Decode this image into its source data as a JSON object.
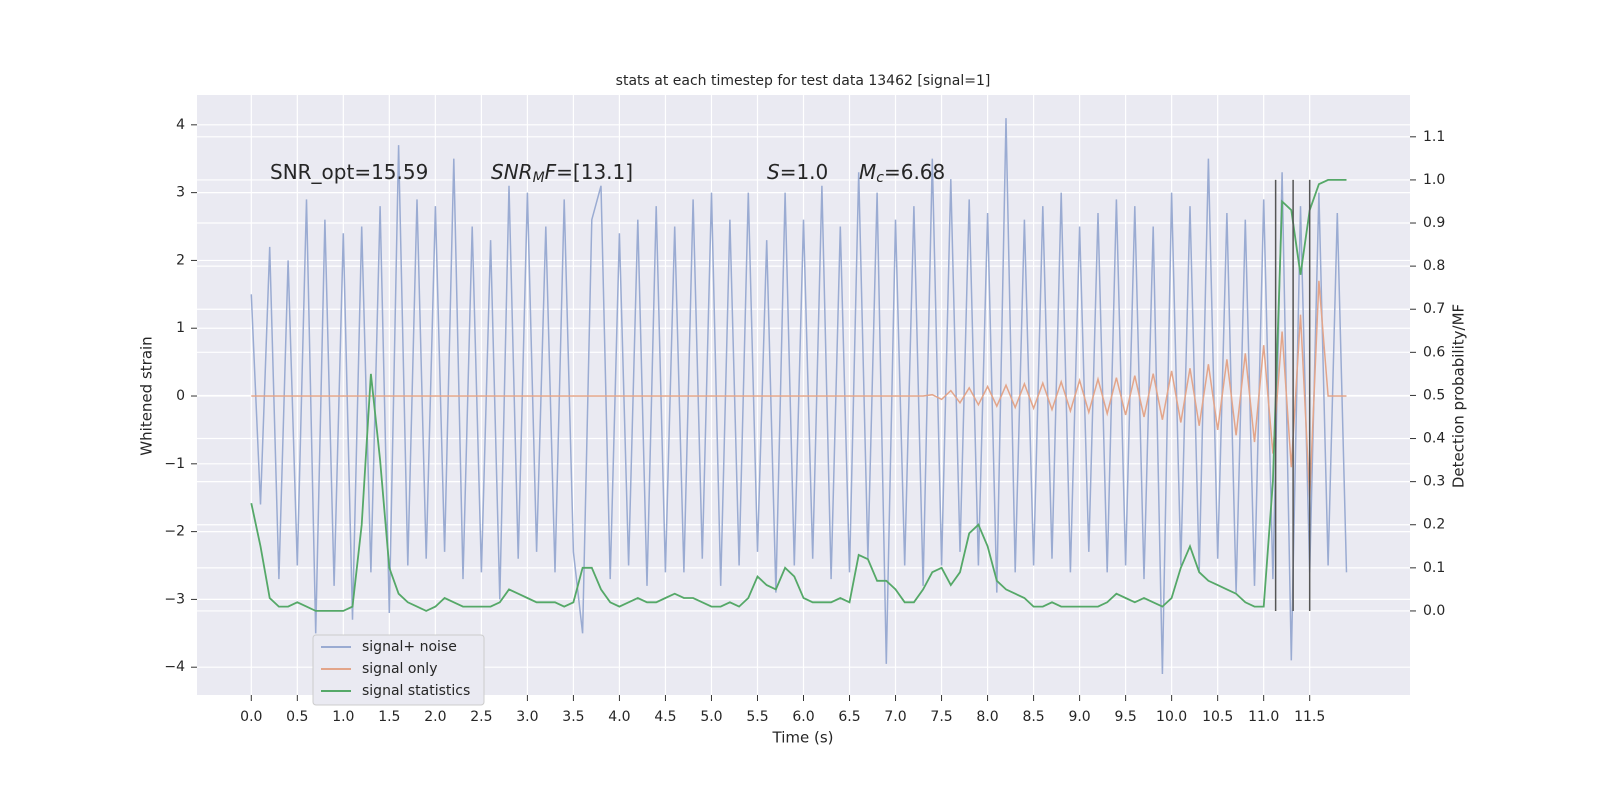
{
  "chart_data": {
    "type": "line",
    "title": "stats at each timestep for test data 13462 [signal=1]",
    "xlabel": "Time (s)",
    "ylabel": "Whitened strain",
    "y2label": "Detection probability/MF",
    "annotations": [
      "SNR_opt=15.59",
      "SNRMF=[13.1]",
      "S=1.0",
      "Mc=6.68"
    ],
    "x": [
      0,
      0.1,
      0.2,
      0.3,
      0.4,
      0.5,
      0.6,
      0.7,
      0.8,
      0.9,
      1,
      1.1,
      1.2,
      1.3,
      1.4,
      1.5,
      1.6,
      1.7,
      1.8,
      1.9,
      2,
      2.1,
      2.2,
      2.3,
      2.4,
      2.5,
      2.6,
      2.7,
      2.8,
      2.9,
      3,
      3.1,
      3.2,
      3.3,
      3.4,
      3.5,
      3.6,
      3.7,
      3.8,
      3.9,
      4,
      4.1,
      4.2,
      4.3,
      4.4,
      4.5,
      4.6,
      4.7,
      4.8,
      4.9,
      5,
      5.1,
      5.2,
      5.3,
      5.4,
      5.5,
      5.6,
      5.7,
      5.8,
      5.9,
      6,
      6.1,
      6.2,
      6.3,
      6.4,
      6.5,
      6.6,
      6.7,
      6.8,
      6.9,
      7,
      7.1,
      7.2,
      7.3,
      7.4,
      7.5,
      7.6,
      7.7,
      7.8,
      7.9,
      8,
      8.1,
      8.2,
      8.3,
      8.4,
      8.5,
      8.6,
      8.7,
      8.8,
      8.9,
      9,
      9.1,
      9.2,
      9.3,
      9.4,
      9.5,
      9.6,
      9.7,
      9.8,
      9.9,
      10,
      10.1,
      10.2,
      10.3,
      10.4,
      10.5,
      10.6,
      10.7,
      10.8,
      10.9,
      11,
      11.1,
      11.2,
      11.3,
      11.4,
      11.5,
      11.6,
      11.7,
      11.8,
      11.9
    ],
    "series": [
      {
        "name": "signal+ noise",
        "color": "#9aabd2",
        "values": [
          1.5,
          -1.6,
          2.2,
          -2.7,
          2.0,
          -2.5,
          2.9,
          -3.5,
          2.6,
          -2.8,
          2.4,
          -3.3,
          2.5,
          -2.6,
          2.8,
          -3.2,
          3.7,
          -2.5,
          2.9,
          -2.4,
          2.8,
          -2.3,
          3.5,
          -2.7,
          2.5,
          -2.6,
          2.3,
          -3.0,
          3.1,
          -2.4,
          3.0,
          -2.3,
          2.5,
          -2.6,
          2.9,
          -2.3,
          -3.5,
          2.6,
          3.1,
          -2.7,
          2.4,
          -2.5,
          2.6,
          -2.8,
          2.8,
          -2.6,
          2.5,
          -2.6,
          2.9,
          -2.4,
          3.0,
          -2.8,
          2.6,
          -2.5,
          3.0,
          -2.3,
          2.3,
          -2.9,
          3.0,
          -2.5,
          2.6,
          -2.4,
          3.1,
          -2.7,
          2.5,
          -2.6,
          3.3,
          -2.4,
          3.0,
          -3.95,
          2.6,
          -2.5,
          2.8,
          -2.8,
          3.5,
          -2.5,
          3.2,
          -2.3,
          2.9,
          -2.5,
          2.7,
          -2.9,
          4.1,
          -2.6,
          2.6,
          -2.5,
          2.8,
          -2.4,
          3.0,
          -2.6,
          2.5,
          -2.3,
          2.7,
          -2.6,
          2.9,
          -2.5,
          2.8,
          -2.7,
          2.5,
          -4.1,
          3.0,
          -2.5,
          2.8,
          -2.6,
          3.5,
          -2.4,
          2.7,
          -2.9,
          2.6,
          -2.8,
          2.9,
          -2.7,
          3.3,
          -3.9,
          2.8,
          -2.6,
          3.0,
          -2.5,
          2.7,
          -2.6
        ]
      },
      {
        "name": "signal only",
        "color": "#e3a58a",
        "values": [
          0,
          0,
          0,
          0,
          0,
          0,
          0,
          0,
          0,
          0,
          0,
          0,
          0,
          0,
          0,
          0,
          0,
          0,
          0,
          0,
          0,
          0,
          0,
          0,
          0,
          0,
          0,
          0,
          0,
          0,
          0,
          0,
          0,
          0,
          0,
          0,
          0,
          0,
          0,
          0,
          0,
          0,
          0,
          0,
          0,
          0,
          0,
          0,
          0,
          0,
          0,
          0,
          0,
          0,
          0,
          0,
          0,
          0,
          0,
          0,
          0,
          0,
          0,
          0,
          0,
          0,
          0,
          0,
          0,
          0,
          0,
          0,
          0,
          0,
          0.02,
          -0.05,
          0.08,
          -0.1,
          0.12,
          -0.13,
          0.14,
          -0.15,
          0.16,
          -0.17,
          0.18,
          -0.18,
          0.19,
          -0.2,
          0.21,
          -0.22,
          0.23,
          -0.24,
          0.25,
          -0.26,
          0.27,
          -0.28,
          0.3,
          -0.31,
          0.33,
          -0.35,
          0.37,
          -0.39,
          0.41,
          -0.44,
          0.47,
          -0.5,
          0.54,
          -0.58,
          0.63,
          -0.68,
          0.75,
          -0.85,
          0.95,
          -1.05,
          1.2,
          -1.5,
          1.7,
          0,
          0,
          0
        ]
      },
      {
        "name": "signal statistics",
        "color": "#55a868",
        "axis": "y2",
        "values": [
          0.25,
          0.15,
          0.03,
          0.01,
          0.01,
          0.02,
          0.01,
          0,
          0,
          0,
          0,
          0.01,
          0.2,
          0.55,
          0.35,
          0.1,
          0.04,
          0.02,
          0.01,
          0,
          0.01,
          0.03,
          0.02,
          0.01,
          0.01,
          0.01,
          0.01,
          0.02,
          0.05,
          0.04,
          0.03,
          0.02,
          0.02,
          0.02,
          0.01,
          0.02,
          0.1,
          0.1,
          0.05,
          0.02,
          0.01,
          0.02,
          0.03,
          0.02,
          0.02,
          0.03,
          0.04,
          0.03,
          0.03,
          0.02,
          0.01,
          0.01,
          0.02,
          0.01,
          0.03,
          0.08,
          0.06,
          0.05,
          0.1,
          0.08,
          0.03,
          0.02,
          0.02,
          0.02,
          0.03,
          0.02,
          0.13,
          0.12,
          0.07,
          0.07,
          0.05,
          0.02,
          0.02,
          0.05,
          0.09,
          0.1,
          0.06,
          0.09,
          0.18,
          0.2,
          0.15,
          0.07,
          0.05,
          0.04,
          0.03,
          0.01,
          0.01,
          0.02,
          0.01,
          0.01,
          0.01,
          0.01,
          0.01,
          0.02,
          0.04,
          0.03,
          0.02,
          0.03,
          0.02,
          0.01,
          0.03,
          0.1,
          0.15,
          0.09,
          0.07,
          0.06,
          0.05,
          0.04,
          0.02,
          0.01,
          0.01,
          0.3,
          0.95,
          0.93,
          0.78,
          0.93,
          0.99,
          1,
          1,
          1
        ]
      }
    ],
    "vlines": {
      "color": "#555555",
      "x": [
        11.13,
        11.32,
        11.5
      ],
      "ymin": 0,
      "ymax": 1
    },
    "xlim": [
      -0.59,
      12.59
    ],
    "ylim": [
      -4.41,
      4.44
    ],
    "y2lim": [
      -0.195,
      1.197
    ],
    "xticks": [
      {
        "value": 0,
        "label": "0.0"
      },
      0.5,
      {
        "value": 1,
        "label": "1.0"
      },
      1.5,
      {
        "value": 2,
        "label": "2.0"
      },
      2.5,
      {
        "value": 3,
        "label": "3.0"
      },
      3.5,
      {
        "value": 4,
        "label": "4.0"
      },
      4.5,
      {
        "value": 5,
        "label": "5.0"
      },
      5.5,
      {
        "value": 6,
        "label": "6.0"
      },
      6.5,
      {
        "value": 7,
        "label": "7.0"
      },
      7.5,
      {
        "value": 8,
        "label": "8.0"
      },
      8.5,
      {
        "value": 9,
        "label": "9.0"
      },
      9.5,
      {
        "value": 10,
        "label": "10.0"
      },
      10.5,
      {
        "value": 11,
        "label": "11.0"
      },
      11.5
    ],
    "yticks": [
      {
        "value": -4,
        "label": "−4"
      },
      {
        "value": -3,
        "label": "−3"
      },
      {
        "value": -2,
        "label": "−2"
      },
      {
        "value": -1,
        "label": "−1"
      },
      0,
      1,
      2,
      3,
      4
    ],
    "y2ticks": [
      {
        "value": 0,
        "label": "0.0"
      },
      0.1,
      0.2,
      0.3,
      0.4,
      0.5,
      0.6,
      0.7,
      0.8,
      0.9,
      {
        "value": 1,
        "label": "1.0"
      },
      1.1
    ],
    "grid": true,
    "legend": "lower left"
  }
}
